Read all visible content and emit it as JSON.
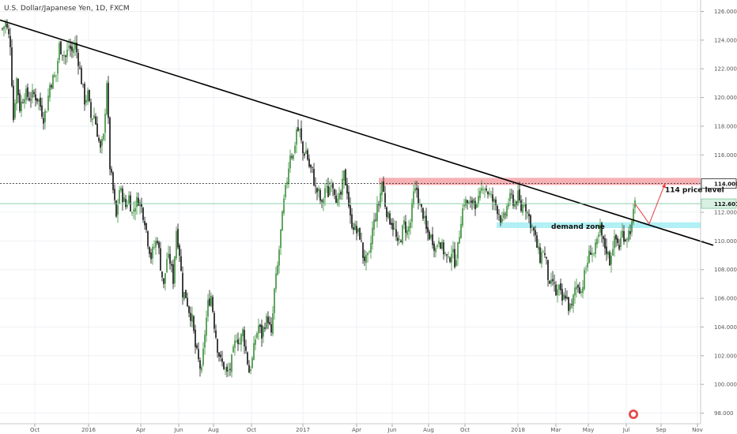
{
  "chart_data": {
    "type": "candlestick",
    "title": "U.S. Dollar/Japanese Yen, 1D, FXCM",
    "x_ticks": [
      "Oct",
      "2016",
      "Apr",
      "Jun",
      "Aug",
      "Oct",
      "2017",
      "Apr",
      "Jun",
      "Aug",
      "Oct",
      "2018",
      "Mar",
      "May",
      "Jul",
      "Sep",
      "Nov"
    ],
    "y_ticks": [
      "126.000",
      "124.000",
      "122.000",
      "120.000",
      "118.000",
      "116.000",
      "114.000",
      "112.000",
      "110.000",
      "108.000",
      "106.000",
      "104.000",
      "102.000",
      "100.000",
      "98.000"
    ],
    "ylim": [
      98,
      126
    ],
    "price_tags": {
      "resistance": "114.000",
      "current": "112.601"
    },
    "annotations": {
      "resistance_label": "114 price level",
      "demand_label": "demand zone"
    },
    "zones": {
      "resistance": {
        "low": 113.9,
        "high": 114.4
      },
      "demand": {
        "low": 110.9,
        "high": 111.3
      }
    },
    "trendline": {
      "start_price": 125.4,
      "end_price": 109.7
    },
    "colors": {
      "up": "#3a8f3a",
      "down": "#111111",
      "resistance_zone": "#f4a3a7",
      "demand_zone": "#a8eef3",
      "trendline": "#000000",
      "projection": "#e63e3e",
      "price_line": "#7fc8a0"
    },
    "grid": true,
    "close_path": [
      [
        0,
        124.8
      ],
      [
        4,
        125.2
      ],
      [
        10,
        123.8
      ],
      [
        14,
        118.5
      ],
      [
        18,
        121.3
      ],
      [
        22,
        119.3
      ],
      [
        28,
        120.3
      ],
      [
        34,
        120.0
      ],
      [
        40,
        120.2
      ],
      [
        46,
        119.8
      ],
      [
        52,
        118.6
      ],
      [
        56,
        119.3
      ],
      [
        60,
        120.9
      ],
      [
        64,
        121.3
      ],
      [
        68,
        121.6
      ],
      [
        72,
        123.6
      ],
      [
        76,
        123.2
      ],
      [
        80,
        122.8
      ],
      [
        84,
        123.6
      ],
      [
        88,
        123.2
      ],
      [
        92,
        123.7
      ],
      [
        96,
        122.6
      ],
      [
        100,
        121.2
      ],
      [
        104,
        119.8
      ],
      [
        108,
        120.2
      ],
      [
        112,
        118.6
      ],
      [
        116,
        118.8
      ],
      [
        120,
        117.6
      ],
      [
        124,
        116.3
      ],
      [
        128,
        117.2
      ],
      [
        132,
        121.2
      ],
      [
        136,
        115.2
      ],
      [
        140,
        113.5
      ],
      [
        144,
        111.6
      ],
      [
        148,
        113.6
      ],
      [
        152,
        113.1
      ],
      [
        156,
        112.4
      ],
      [
        160,
        113.1
      ],
      [
        164,
        111.9
      ],
      [
        168,
        112.6
      ],
      [
        172,
        112.9
      ],
      [
        176,
        112.3
      ],
      [
        180,
        111.5
      ],
      [
        184,
        110.0
      ],
      [
        188,
        108.9
      ],
      [
        192,
        109.6
      ],
      [
        196,
        110.2
      ],
      [
        200,
        108.3
      ],
      [
        204,
        106.8
      ],
      [
        208,
        108.8
      ],
      [
        212,
        108.6
      ],
      [
        216,
        107.3
      ],
      [
        220,
        110.8
      ],
      [
        224,
        109.2
      ],
      [
        228,
        106.4
      ],
      [
        232,
        106.2
      ],
      [
        236,
        105.2
      ],
      [
        240,
        104.5
      ],
      [
        244,
        102.6
      ],
      [
        248,
        101.6
      ],
      [
        252,
        100.8
      ],
      [
        256,
        103.6
      ],
      [
        260,
        105.6
      ],
      [
        264,
        106.2
      ],
      [
        268,
        104.2
      ],
      [
        272,
        102.6
      ],
      [
        276,
        101.6
      ],
      [
        280,
        101.3
      ],
      [
        284,
        100.7
      ],
      [
        288,
        101.1
      ],
      [
        292,
        102.2
      ],
      [
        296,
        103.4
      ],
      [
        300,
        102.9
      ],
      [
        304,
        103.7
      ],
      [
        308,
        102.3
      ],
      [
        312,
        100.9
      ],
      [
        316,
        101.7
      ],
      [
        320,
        103.2
      ],
      [
        324,
        104.1
      ],
      [
        328,
        103.4
      ],
      [
        332,
        104.3
      ],
      [
        336,
        104.6
      ],
      [
        340,
        103.3
      ],
      [
        344,
        106.5
      ],
      [
        348,
        108.2
      ],
      [
        352,
        110.6
      ],
      [
        356,
        112.7
      ],
      [
        360,
        114.3
      ],
      [
        364,
        116.2
      ],
      [
        368,
        115.9
      ],
      [
        372,
        117.8
      ],
      [
        376,
        117.6
      ],
      [
        380,
        116.1
      ],
      [
        384,
        116.3
      ],
      [
        388,
        115.2
      ],
      [
        392,
        114.8
      ],
      [
        396,
        113.6
      ],
      [
        400,
        113.3
      ],
      [
        404,
        112.4
      ],
      [
        408,
        113.7
      ],
      [
        412,
        113.3
      ],
      [
        416,
        114.3
      ],
      [
        420,
        113.6
      ],
      [
        424,
        112.6
      ],
      [
        428,
        113.2
      ],
      [
        432,
        114.6
      ],
      [
        436,
        113.6
      ],
      [
        440,
        111.5
      ],
      [
        444,
        111.1
      ],
      [
        448,
        110.6
      ],
      [
        452,
        110.4
      ],
      [
        456,
        109.0
      ],
      [
        460,
        108.6
      ],
      [
        464,
        108.9
      ],
      [
        468,
        110.8
      ],
      [
        472,
        111.8
      ],
      [
        476,
        112.6
      ],
      [
        480,
        114.1
      ],
      [
        484,
        112.6
      ],
      [
        488,
        111.6
      ],
      [
        492,
        111.4
      ],
      [
        496,
        110.7
      ],
      [
        500,
        109.6
      ],
      [
        504,
        110.3
      ],
      [
        508,
        111.2
      ],
      [
        512,
        110.6
      ],
      [
        516,
        111.3
      ],
      [
        520,
        113.2
      ],
      [
        524,
        113.6
      ],
      [
        528,
        112.3
      ],
      [
        532,
        111.9
      ],
      [
        536,
        110.7
      ],
      [
        540,
        110.4
      ],
      [
        544,
        110.1
      ],
      [
        548,
        109.4
      ],
      [
        552,
        110.3
      ],
      [
        556,
        109.5
      ],
      [
        560,
        109.1
      ],
      [
        564,
        108.5
      ],
      [
        568,
        109.4
      ],
      [
        572,
        108.6
      ],
      [
        576,
        109.5
      ],
      [
        580,
        111.6
      ],
      [
        584,
        112.8
      ],
      [
        588,
        112.6
      ],
      [
        592,
        112.4
      ],
      [
        596,
        113.0
      ],
      [
        600,
        112.3
      ],
      [
        604,
        113.1
      ],
      [
        608,
        114.0
      ],
      [
        612,
        113.6
      ],
      [
        616,
        113.2
      ],
      [
        620,
        112.8
      ],
      [
        624,
        112.5
      ],
      [
        628,
        112.0
      ],
      [
        632,
        111.2
      ],
      [
        636,
        111.9
      ],
      [
        640,
        112.8
      ],
      [
        644,
        113.0
      ],
      [
        648,
        112.6
      ],
      [
        652,
        113.1
      ],
      [
        656,
        112.2
      ],
      [
        660,
        112.8
      ],
      [
        664,
        112.0
      ],
      [
        668,
        111.3
      ],
      [
        672,
        110.6
      ],
      [
        676,
        109.6
      ],
      [
        680,
        108.8
      ],
      [
        684,
        109.4
      ],
      [
        688,
        108.4
      ],
      [
        692,
        106.6
      ],
      [
        696,
        107.2
      ],
      [
        700,
        106.3
      ],
      [
        704,
        106.6
      ],
      [
        708,
        105.8
      ],
      [
        712,
        106.3
      ],
      [
        716,
        105.4
      ],
      [
        720,
        105.3
      ],
      [
        724,
        106.7
      ],
      [
        728,
        107.0
      ],
      [
        732,
        106.5
      ],
      [
        736,
        107.6
      ],
      [
        740,
        108.6
      ],
      [
        744,
        109.4
      ],
      [
        748,
        109.1
      ],
      [
        752,
        109.8
      ],
      [
        756,
        110.8
      ],
      [
        760,
        109.8
      ],
      [
        764,
        109.4
      ],
      [
        768,
        108.6
      ],
      [
        772,
        109.8
      ],
      [
        776,
        110.1
      ],
      [
        780,
        109.6
      ],
      [
        784,
        110.6
      ],
      [
        788,
        110.2
      ],
      [
        792,
        110.6
      ],
      [
        796,
        111.1
      ],
      [
        800,
        112.6
      ]
    ]
  }
}
